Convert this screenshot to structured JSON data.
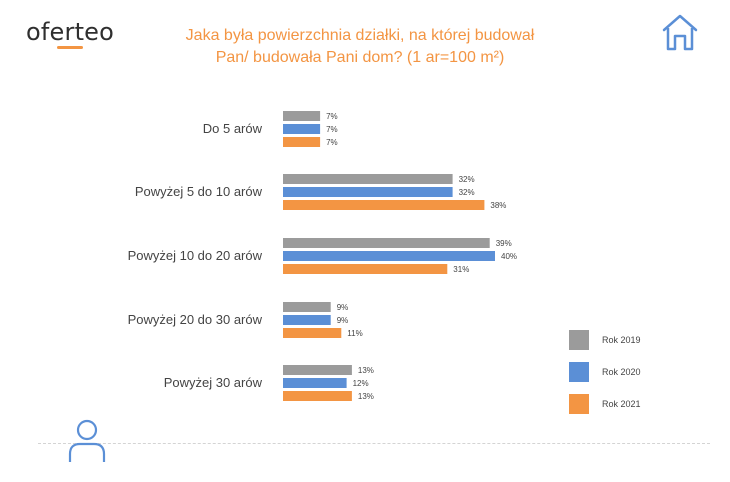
{
  "brand": {
    "logo_text": "oferteo",
    "accent_color": "#f39543",
    "logo_color": "#2f2f2f"
  },
  "header": {
    "icon": "house-icon",
    "icon_color": "#5b8fd6"
  },
  "footer": {
    "icon": "person-icon",
    "icon_color": "#5b8fd6"
  },
  "chart_data": {
    "type": "bar",
    "orientation": "horizontal",
    "title_line1": "Jaka była powierzchnia działki, na której budował",
    "title_line2": "Pan/ budowała Pani dom? (1 ar=100 m²)",
    "categories": [
      "Do 5 arów",
      "Powyżej 5 do 10 arów",
      "Powyżej 10 do 20 arów",
      "Powyżej 20 do 30 arów",
      "Powyżej 30 arów"
    ],
    "series": [
      {
        "name": "Rok 2019",
        "color": "#9b9b9b",
        "values": [
          7,
          32,
          39,
          9,
          13
        ],
        "labels": [
          "7%",
          "32%",
          "39%",
          "9%",
          "13%"
        ]
      },
      {
        "name": "Rok 2020",
        "color": "#5b8fd6",
        "values": [
          7,
          32,
          40,
          9,
          12
        ],
        "labels": [
          "7%",
          "32%",
          "40%",
          "9%",
          "12%"
        ]
      },
      {
        "name": "Rok 2021",
        "color": "#f39543",
        "values": [
          7,
          38,
          31,
          11,
          13
        ],
        "labels": [
          "7%",
          "38%",
          "31%",
          "11%",
          "13%"
        ]
      }
    ],
    "value_unit": "%",
    "xlim": [
      0,
      40
    ],
    "grid": false,
    "legend_position": "right"
  }
}
